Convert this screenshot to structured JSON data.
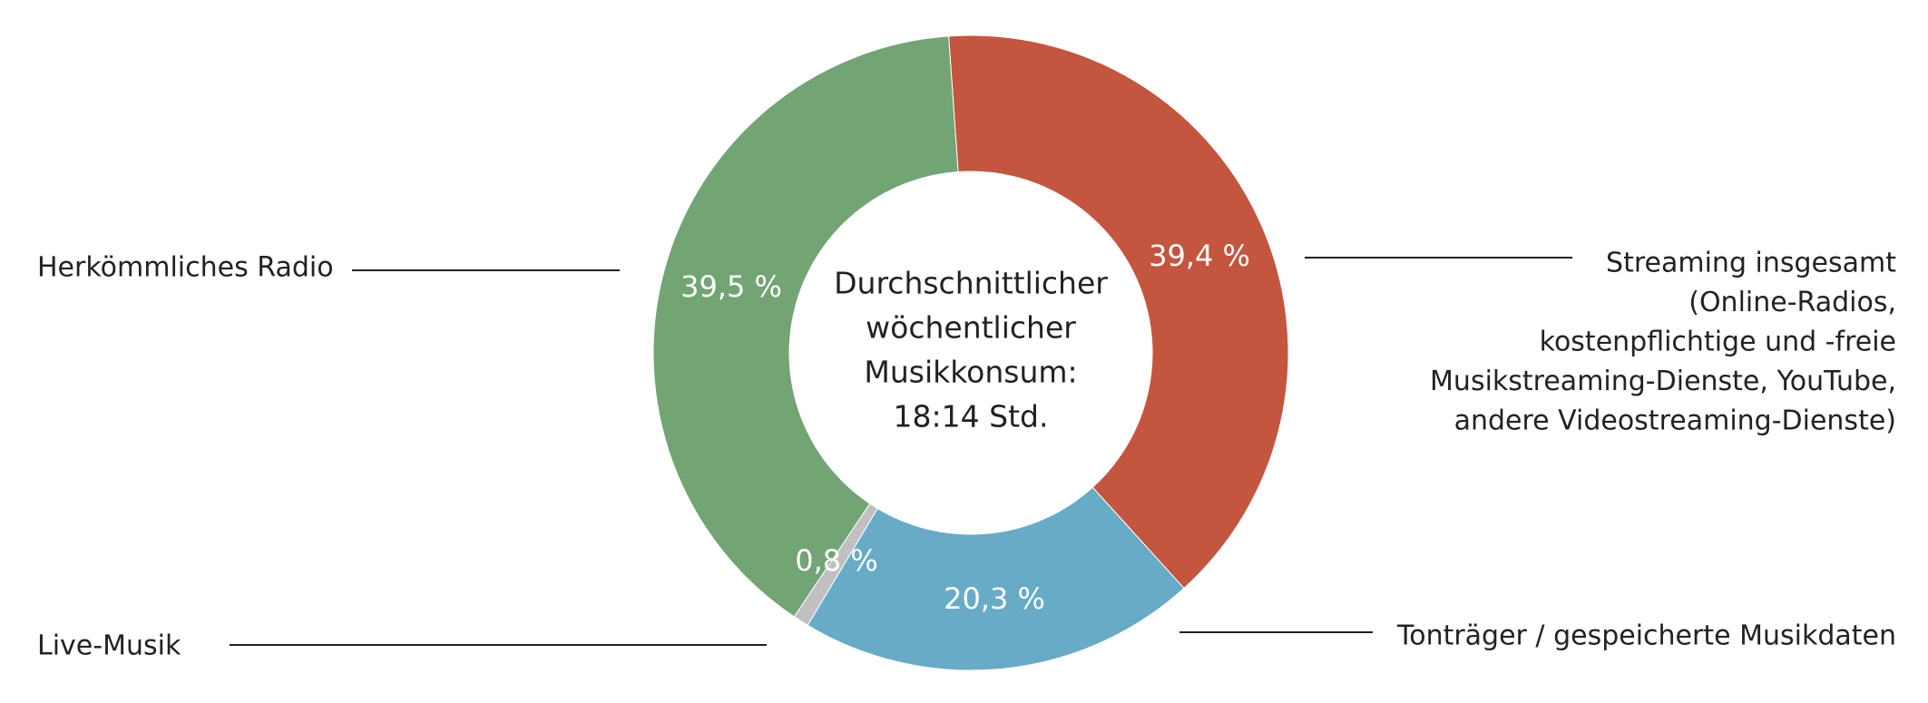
{
  "chart_data": {
    "type": "donut",
    "categories": [
      [
        "Streaming insgesamt",
        "(Online-Radios,",
        "kostenpflichtige und -freie",
        "Musikstreaming-Dienste, YouTube,",
        "andere Videostreaming-Dienste)"
      ],
      [
        "Tonträger / gespeicherte Musikdaten"
      ],
      [
        "Live-Musik"
      ],
      [
        "Herkömmliches Radio"
      ]
    ],
    "values": [
      39.4,
      20.3,
      0.8,
      39.5
    ],
    "value_labels": [
      "39,4 %",
      "20,3 %",
      "0,8 %",
      "39,5 %"
    ],
    "colors": [
      "#c4553e",
      "#67abc6",
      "#c0c0c0",
      "#72a474"
    ],
    "center_text": [
      "Durchschnittlicher",
      "wöchentlicher",
      "Musikkonsum:",
      "18:14 Std."
    ]
  }
}
